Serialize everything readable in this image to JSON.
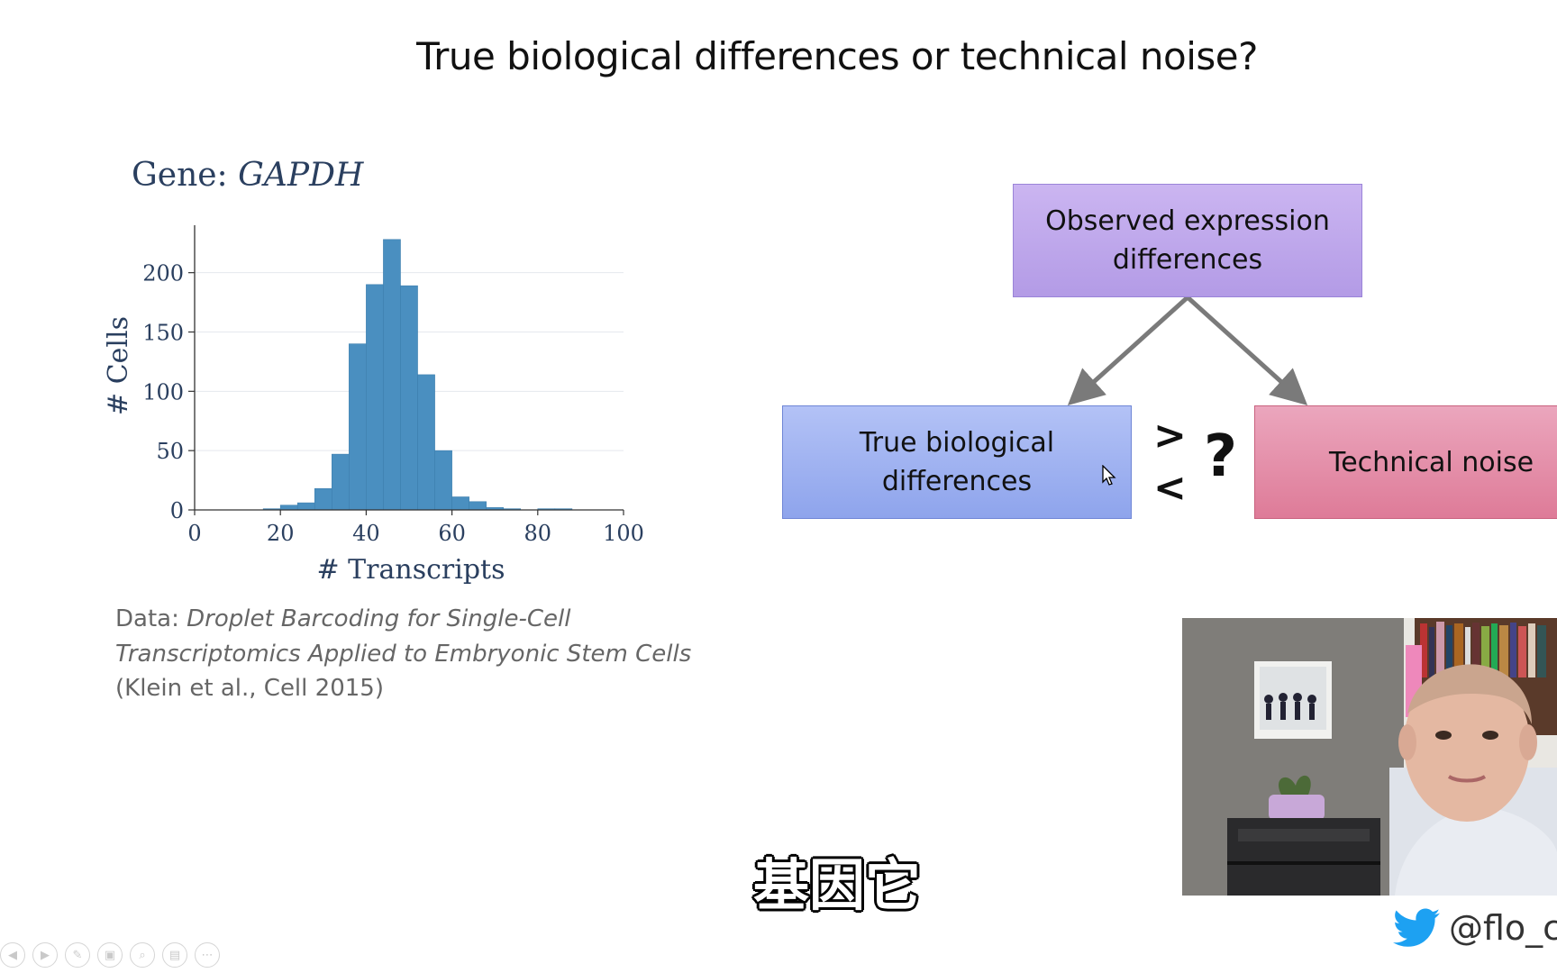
{
  "slide": {
    "title": "True biological differences or technical noise?"
  },
  "chart": {
    "gene_label": "Gene:",
    "gene_name": "GAPDH"
  },
  "chart_data": {
    "type": "bar",
    "title": "Gene: GAPDH",
    "xlabel": "# Transcripts",
    "ylabel": "# Cells",
    "xlim": [
      0,
      100
    ],
    "ylim": [
      0,
      240
    ],
    "xticks": [
      0,
      20,
      40,
      60,
      80,
      100
    ],
    "yticks": [
      0,
      50,
      100,
      150,
      200
    ],
    "bin_width": 4,
    "bin_starts": [
      16,
      20,
      24,
      28,
      32,
      36,
      40,
      44,
      48,
      52,
      56,
      60,
      64,
      68,
      72,
      76,
      80,
      84
    ],
    "values": [
      1,
      4,
      6,
      18,
      47,
      140,
      190,
      228,
      189,
      114,
      50,
      11,
      7,
      2,
      1,
      0,
      1,
      1
    ],
    "bar_color": "#4a8fc0",
    "grid": true
  },
  "citation": {
    "prefix": "Data: ",
    "title_line1": "Droplet Barcoding for Single-Cell",
    "title_line2": "Transcriptomics Applied to Embryonic Stem Cells",
    "reference": "(Klein et al., Cell 2015)"
  },
  "diagram": {
    "observed_line1": "Observed expression",
    "observed_line2": "differences",
    "biological_line1": "True biological",
    "biological_line2": "differences",
    "noise": "Technical noise",
    "greater_than": ">",
    "less_than": "<",
    "question": "?"
  },
  "video": {
    "subtitle": "基因它",
    "twitter_handle": "@flo_c"
  },
  "colors": {
    "observed_box": "#b9a3ea",
    "biological_box": "#9fb2f1",
    "noise_box": "#e48fa9",
    "arrow": "#7a7a7a",
    "twitter": "#1da1f2"
  }
}
